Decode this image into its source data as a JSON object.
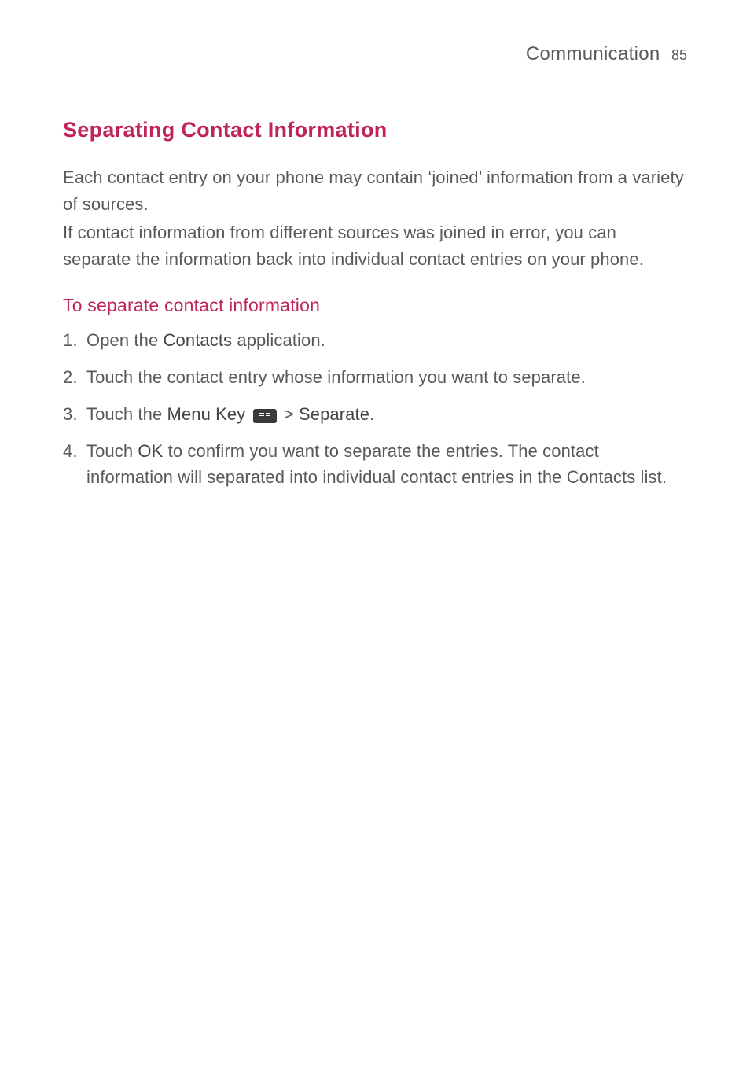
{
  "page": {
    "header_title": "Communication",
    "page_number": "85",
    "colors": {
      "accent": "#c1235c",
      "header_rule": "#c1235c",
      "body_text": "#595959",
      "bold_text": "#444444",
      "icon_bg": "#3a3a3a",
      "background": "#ffffff"
    },
    "typography": {
      "h1_size_pt": 20,
      "h2_size_pt": 17,
      "body_size_pt": 16,
      "h1_weight": 600,
      "h2_weight": 400,
      "body_weight": 300
    }
  },
  "content": {
    "h1": "Separating Contact Information",
    "intro_p1": "Each contact entry on your phone may contain ‘joined’ information from a variety of sources.",
    "intro_p2": "If contact information from different sources was joined in error, you can separate the information back into individual contact entries on your phone.",
    "h2": "To separate contact information",
    "steps": [
      {
        "pre": " Open the ",
        "bold1": "Contacts",
        "mid": " application.",
        "icon": false
      },
      {
        "pre": " Touch the contact entry whose information you want to separate.",
        "icon": false
      },
      {
        "pre": "Touch the ",
        "bold1": "Menu Key",
        "mid": " ",
        "icon": true,
        "post_icon": " > ",
        "bold2": "Separate",
        "tail": "."
      },
      {
        "pre": " Touch ",
        "bold1": "OK",
        "mid": " to confirm you want to separate the entries. The contact information will separated into individual contact entries in the Contacts list.",
        "icon": false
      }
    ]
  }
}
